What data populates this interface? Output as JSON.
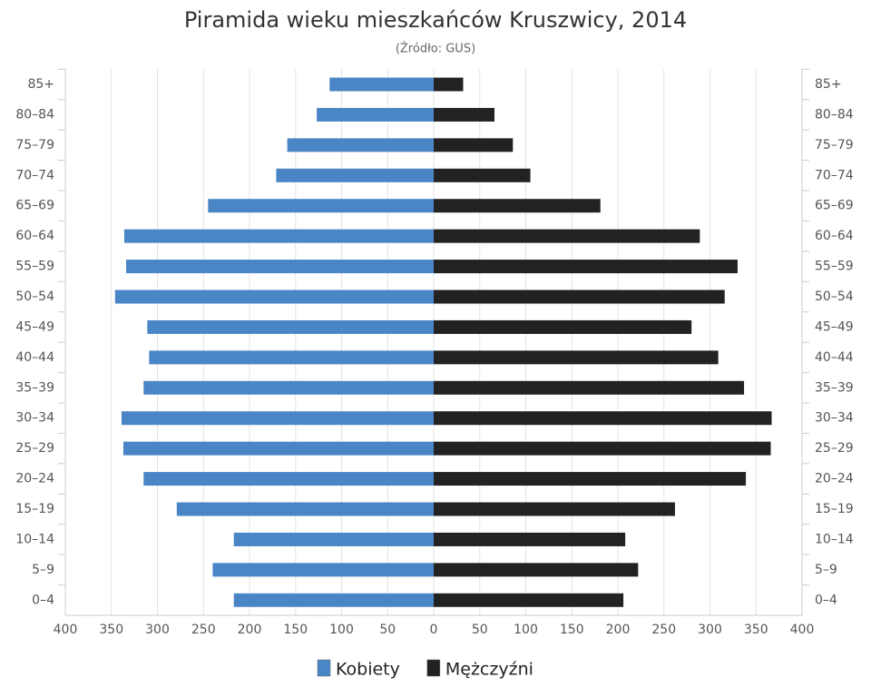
{
  "chart_data": {
    "type": "pyramid",
    "title": "Piramida wieku mieszkańców Kruszwicy, 2014",
    "subtitle": "(Źródło: GUS)",
    "categories": [
      "85+",
      "80–84",
      "75–79",
      "70–74",
      "65–69",
      "60–64",
      "55–59",
      "50–54",
      "45–49",
      "40–44",
      "35–39",
      "30–34",
      "25–29",
      "20–24",
      "15–19",
      "10–14",
      "5–9",
      "0–4"
    ],
    "series": [
      {
        "name": "Kobiety",
        "color": "#4a86c6",
        "values": [
          -113,
          -127,
          -159,
          -171,
          -245,
          -336,
          -334,
          -346,
          -311,
          -309,
          -315,
          -339,
          -337,
          -315,
          -279,
          -217,
          -240,
          -217
        ]
      },
      {
        "name": "Mężczyźni",
        "color": "#222222",
        "values": [
          32,
          66,
          86,
          105,
          181,
          289,
          330,
          316,
          280,
          309,
          337,
          367,
          366,
          339,
          262,
          208,
          222,
          206
        ]
      }
    ],
    "xlim": [
      -400,
      400
    ],
    "xticks": [
      {
        "value": -400,
        "label": "400"
      },
      {
        "value": -350,
        "label": "350"
      },
      {
        "value": -300,
        "label": "300"
      },
      {
        "value": -250,
        "label": "250"
      },
      {
        "value": -200,
        "label": "200"
      },
      {
        "value": -150,
        "label": "150"
      },
      {
        "value": -100,
        "label": "100"
      },
      {
        "value": -50,
        "label": "50"
      },
      0,
      50,
      100,
      150,
      200,
      250,
      300,
      350,
      400
    ],
    "grid": true
  }
}
